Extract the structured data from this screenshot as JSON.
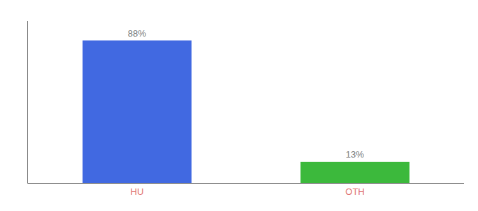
{
  "chart_data": {
    "type": "bar",
    "categories": [
      "HU",
      "OTH"
    ],
    "values": [
      88,
      13
    ],
    "value_labels": [
      "88%",
      "13%"
    ],
    "colors": [
      "#4169E1",
      "#3CB93C"
    ],
    "ylim": [
      0,
      100
    ],
    "data_labels": true,
    "tick_labels": "x",
    "grid": false
  }
}
